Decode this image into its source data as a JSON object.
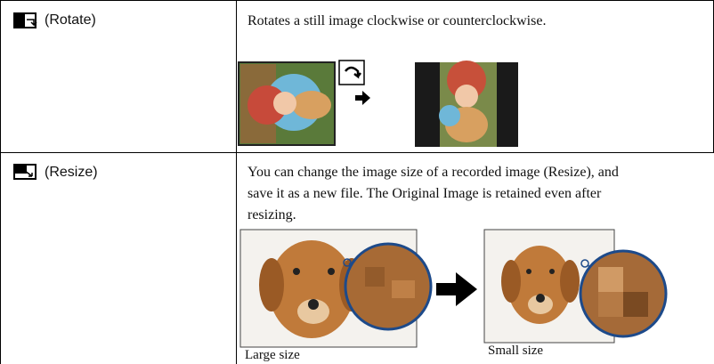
{
  "table": {
    "rows": [
      {
        "label": "(Rotate)",
        "description": [
          "Rotates a still image clockwise or counterclockwise."
        ]
      },
      {
        "label": "(Resize)",
        "description": [
          "You can change the image size of a recorded image (Resize), and",
          "save it as a new file. The Original Image is retained even after",
          "resizing."
        ],
        "captions": [
          "Large size",
          "Small size"
        ]
      }
    ]
  }
}
